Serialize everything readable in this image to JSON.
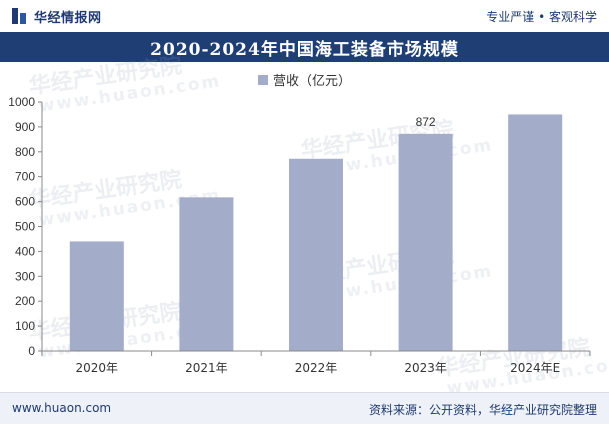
{
  "header": {
    "brand": "华经情报网",
    "slogan": "专业严谨 • 客观科学"
  },
  "title": "2020-2024年中国海工装备市场规模",
  "footer": {
    "url": "www.huaon.com",
    "source": "资料来源：公开资料，华经产业研究院整理"
  },
  "watermark": {
    "text": "华经产业研究院",
    "url": "www.huaon.com"
  },
  "colors": {
    "bar": "#a3acc8",
    "banner": "#1f3f74",
    "axis": "#555555"
  },
  "chart_data": {
    "type": "bar",
    "title": "2020-2024年中国海工装备市场规模",
    "categories": [
      "2020年",
      "2021年",
      "2022年",
      "2023年",
      "2024年E"
    ],
    "series": [
      {
        "name": "营收（亿元）",
        "values": [
          440,
          617,
          772,
          872,
          950
        ]
      }
    ],
    "data_labels": [
      null,
      null,
      null,
      "872",
      null
    ],
    "ylim": [
      0,
      1000
    ],
    "yticks": [
      0,
      100,
      200,
      300,
      400,
      500,
      600,
      700,
      800,
      900,
      1000
    ],
    "xlabel": "",
    "ylabel": "",
    "legend": "top-center",
    "grid": false
  }
}
